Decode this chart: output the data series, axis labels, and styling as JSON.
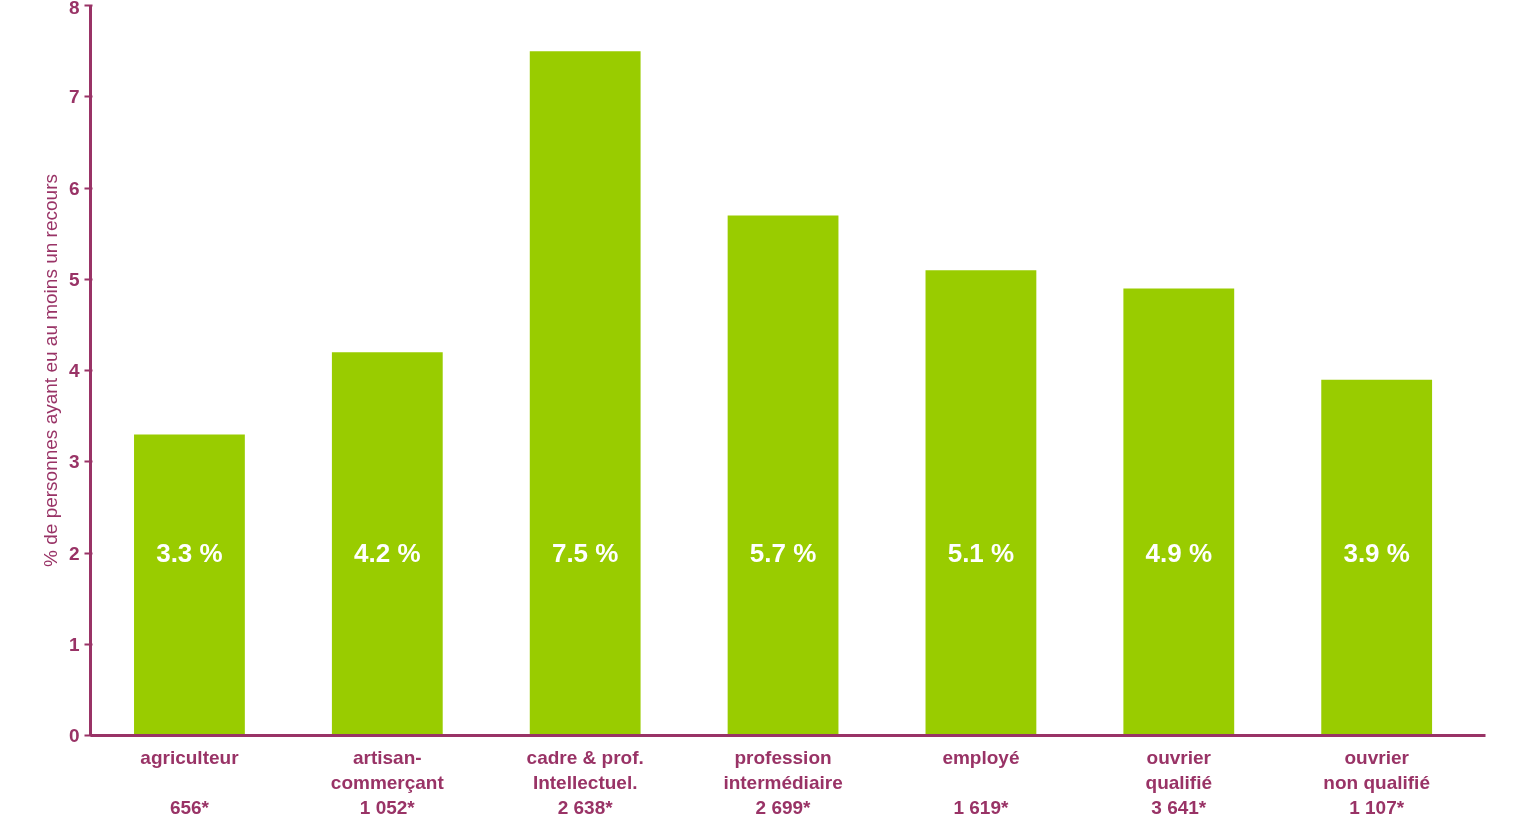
{
  "chart_data": {
    "type": "bar",
    "ylabel": "% de personnes ayant eu au moins un recours",
    "categories": [
      "agriculteur\n\n656*",
      "artisan-\ncommerçant\n1 052*",
      "cadre & prof.\nIntellectuel.\n2 638*",
      "profession\nintermédiaire\n2 699*",
      "employé\n\n1 619*",
      "ouvrier\nqualifié\n3 641*",
      "ouvrier\nnon qualifié\n1 107*"
    ],
    "values": [
      3.3,
      4.2,
      7.5,
      5.7,
      5.1,
      4.9,
      3.9
    ],
    "value_labels": [
      "3.3 %",
      "4.2 %",
      "7.5 %",
      "5.7 %",
      "5.1 %",
      "4.9 %",
      "3.9 %"
    ],
    "color": "#99cc00",
    "ylim": [
      0,
      8
    ],
    "yticks": [
      0,
      1,
      2,
      3,
      4,
      5,
      6,
      7,
      8
    ],
    "grid": false
  }
}
